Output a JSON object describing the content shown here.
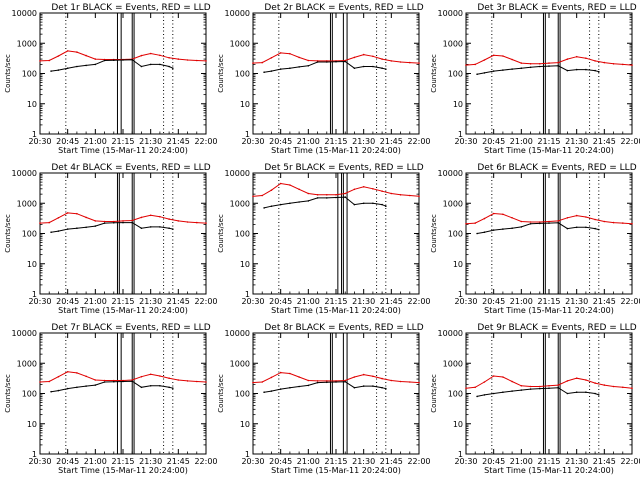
{
  "colors": {
    "events": "#000000",
    "lld": "#e00000",
    "axes": "#000000"
  },
  "common": {
    "ylabel": "Counts/sec",
    "xlabel": "Start Time (15-Mar-11 20:24:00)",
    "x_tick_labels": [
      "20:30",
      "20:45",
      "21:00",
      "21:15",
      "21:30",
      "21:45",
      "22:00"
    ],
    "y_tick_labels": [
      "1",
      "10",
      "100",
      "1000",
      "10000"
    ]
  },
  "chart_data": [
    {
      "type": "line",
      "y_scale": "log",
      "title": "Det 1r BLACK = Events, RED = LLD",
      "xlim": [
        "20:30",
        "22:00"
      ],
      "ylim": [
        1,
        10000
      ],
      "markers": [
        "20:44",
        "21:37",
        "21:42"
      ],
      "gaps": [
        [
          "21:12",
          "21:14"
        ],
        [
          "21:20",
          "21:21"
        ]
      ],
      "series": [
        {
          "name": "LLD",
          "x": [
            "20:30",
            "20:35",
            "20:40",
            "20:45",
            "20:50",
            "20:55",
            "21:00",
            "21:05",
            "21:10",
            "21:15",
            "21:20",
            "21:25",
            "21:30",
            "21:35",
            "21:40",
            "21:45",
            "21:50",
            "21:55",
            "22:00"
          ],
          "values": [
            260,
            270,
            380,
            560,
            510,
            390,
            300,
            290,
            290,
            290,
            300,
            390,
            460,
            400,
            330,
            300,
            280,
            270,
            260
          ]
        },
        {
          "name": "Events",
          "x": [
            "20:36",
            "20:40",
            "20:45",
            "20:50",
            "20:55",
            "21:00",
            "21:05",
            "21:10",
            "21:15",
            "21:20",
            "21:25",
            "21:30",
            "21:35",
            "21:40",
            "21:42"
          ],
          "values": [
            120,
            130,
            150,
            170,
            185,
            200,
            270,
            275,
            280,
            285,
            170,
            200,
            200,
            170,
            150
          ]
        }
      ]
    },
    {
      "type": "line",
      "y_scale": "log",
      "title": "Det 2r BLACK = Events, RED = LLD",
      "xlim": [
        "20:30",
        "22:00"
      ],
      "ylim": [
        1,
        10000
      ],
      "markers": [
        "20:44",
        "21:37",
        "21:42"
      ],
      "gaps": [
        [
          "21:12",
          "21:13"
        ],
        [
          "21:19",
          "21:21"
        ]
      ],
      "series": [
        {
          "name": "LLD",
          "x": [
            "20:30",
            "20:35",
            "20:40",
            "20:45",
            "20:50",
            "20:55",
            "21:00",
            "21:05",
            "21:10",
            "21:15",
            "21:20",
            "21:25",
            "21:30",
            "21:35",
            "21:40",
            "21:45",
            "21:50",
            "21:55",
            "22:00"
          ],
          "values": [
            220,
            230,
            330,
            480,
            450,
            340,
            270,
            260,
            260,
            260,
            270,
            340,
            420,
            370,
            300,
            260,
            240,
            230,
            220
          ]
        },
        {
          "name": "Events",
          "x": [
            "20:36",
            "20:40",
            "20:45",
            "20:50",
            "20:55",
            "21:00",
            "21:05",
            "21:10",
            "21:15",
            "21:20",
            "21:25",
            "21:30",
            "21:35",
            "21:40",
            "21:42"
          ],
          "values": [
            110,
            120,
            140,
            150,
            165,
            180,
            240,
            240,
            245,
            250,
            150,
            170,
            170,
            150,
            140
          ]
        }
      ]
    },
    {
      "type": "line",
      "y_scale": "log",
      "title": "Det 3r BLACK = Events, RED = LLD",
      "xlim": [
        "20:30",
        "22:00"
      ],
      "ylim": [
        1,
        10000
      ],
      "markers": [
        "20:44",
        "21:37",
        "21:42"
      ],
      "gaps": [
        [
          "21:12",
          "21:13"
        ],
        [
          "21:20",
          "21:21"
        ]
      ],
      "series": [
        {
          "name": "LLD",
          "x": [
            "20:30",
            "20:35",
            "20:40",
            "20:45",
            "20:50",
            "20:55",
            "21:00",
            "21:05",
            "21:10",
            "21:15",
            "21:20",
            "21:25",
            "21:30",
            "21:35",
            "21:40",
            "21:45",
            "21:50",
            "21:55",
            "22:00"
          ],
          "values": [
            190,
            200,
            280,
            400,
            380,
            290,
            220,
            210,
            210,
            220,
            230,
            300,
            360,
            320,
            260,
            230,
            210,
            200,
            190
          ]
        },
        {
          "name": "Events",
          "x": [
            "20:36",
            "20:40",
            "20:45",
            "20:50",
            "20:55",
            "21:00",
            "21:05",
            "21:10",
            "21:15",
            "21:20",
            "21:25",
            "21:30",
            "21:35",
            "21:40",
            "21:42"
          ],
          "values": [
            95,
            105,
            120,
            130,
            140,
            150,
            160,
            170,
            175,
            180,
            125,
            135,
            135,
            125,
            115
          ]
        }
      ]
    },
    {
      "type": "line",
      "y_scale": "log",
      "title": "Det 4r BLACK = Events, RED = LLD",
      "xlim": [
        "20:30",
        "22:00"
      ],
      "ylim": [
        1,
        10000
      ],
      "markers": [
        "20:44",
        "21:37",
        "21:42"
      ],
      "gaps": [
        [
          "21:12",
          "21:13"
        ],
        [
          "21:20",
          "21:21"
        ]
      ],
      "series": [
        {
          "name": "LLD",
          "x": [
            "20:30",
            "20:35",
            "20:40",
            "20:45",
            "20:50",
            "20:55",
            "21:00",
            "21:05",
            "21:10",
            "21:15",
            "21:20",
            "21:25",
            "21:30",
            "21:35",
            "21:40",
            "21:45",
            "21:50",
            "21:55",
            "22:00"
          ],
          "values": [
            220,
            230,
            330,
            480,
            450,
            340,
            260,
            250,
            250,
            260,
            270,
            340,
            400,
            360,
            300,
            260,
            240,
            230,
            220
          ]
        },
        {
          "name": "Events",
          "x": [
            "20:36",
            "20:40",
            "20:45",
            "20:50",
            "20:55",
            "21:00",
            "21:05",
            "21:10",
            "21:15",
            "21:20",
            "21:25",
            "21:30",
            "21:35",
            "21:40",
            "21:42"
          ],
          "values": [
            110,
            120,
            140,
            150,
            160,
            175,
            220,
            225,
            230,
            230,
            150,
            165,
            165,
            150,
            140
          ]
        }
      ]
    },
    {
      "type": "line",
      "y_scale": "log",
      "title": "Det 5r BLACK = Events, RED = LLD",
      "xlim": [
        "20:30",
        "22:00"
      ],
      "ylim": [
        1,
        10000
      ],
      "markers": [
        "20:44",
        "21:37",
        "21:42"
      ],
      "gaps": [
        [
          "21:16",
          "21:18"
        ],
        [
          "21:19",
          "21:21"
        ]
      ],
      "series": [
        {
          "name": "LLD",
          "x": [
            "20:30",
            "20:35",
            "20:40",
            "20:45",
            "20:50",
            "20:55",
            "21:00",
            "21:05",
            "21:10",
            "21:15",
            "21:20",
            "21:25",
            "21:30",
            "21:35",
            "21:40",
            "21:45",
            "21:50",
            "21:55",
            "22:00"
          ],
          "values": [
            1700,
            1800,
            2700,
            4500,
            4000,
            2900,
            2100,
            1900,
            1900,
            1900,
            2100,
            2900,
            3500,
            3000,
            2500,
            2100,
            1900,
            1800,
            1700
          ]
        },
        {
          "name": "Events",
          "x": [
            "20:36",
            "20:40",
            "20:45",
            "20:50",
            "20:55",
            "21:00",
            "21:05",
            "21:10",
            "21:15",
            "21:20",
            "21:25",
            "21:30",
            "21:35",
            "21:40",
            "21:42"
          ],
          "values": [
            700,
            800,
            900,
            1000,
            1100,
            1200,
            1500,
            1500,
            1550,
            1600,
            900,
            1000,
            1000,
            900,
            800
          ]
        }
      ]
    },
    {
      "type": "line",
      "y_scale": "log",
      "title": "Det 6r BLACK = Events, RED = LLD",
      "xlim": [
        "20:30",
        "22:00"
      ],
      "ylim": [
        1,
        10000
      ],
      "markers": [
        "20:44",
        "21:37",
        "21:42"
      ],
      "gaps": [
        [
          "21:12",
          "21:13"
        ],
        [
          "21:20",
          "21:21"
        ]
      ],
      "series": [
        {
          "name": "LLD",
          "x": [
            "20:30",
            "20:35",
            "20:40",
            "20:45",
            "20:50",
            "20:55",
            "21:00",
            "21:05",
            "21:10",
            "21:15",
            "21:20",
            "21:25",
            "21:30",
            "21:35",
            "21:40",
            "21:45",
            "21:50",
            "21:55",
            "22:00"
          ],
          "values": [
            210,
            220,
            310,
            460,
            430,
            330,
            250,
            240,
            240,
            250,
            260,
            330,
            390,
            350,
            290,
            250,
            230,
            220,
            210
          ]
        },
        {
          "name": "Events",
          "x": [
            "20:36",
            "20:40",
            "20:45",
            "20:50",
            "20:55",
            "21:00",
            "21:05",
            "21:10",
            "21:15",
            "21:20",
            "21:25",
            "21:30",
            "21:35",
            "21:40",
            "21:42"
          ],
          "values": [
            100,
            110,
            130,
            140,
            150,
            165,
            210,
            215,
            220,
            225,
            145,
            160,
            160,
            145,
            135
          ]
        }
      ]
    },
    {
      "type": "line",
      "y_scale": "log",
      "title": "Det 7r BLACK = Events, RED = LLD",
      "xlim": [
        "20:30",
        "22:00"
      ],
      "ylim": [
        1,
        10000
      ],
      "markers": [
        "20:44",
        "21:37",
        "21:42"
      ],
      "gaps": [
        [
          "21:12",
          "21:14"
        ],
        [
          "21:20",
          "21:21"
        ]
      ],
      "series": [
        {
          "name": "LLD",
          "x": [
            "20:30",
            "20:35",
            "20:40",
            "20:45",
            "20:50",
            "20:55",
            "21:00",
            "21:05",
            "21:10",
            "21:15",
            "21:20",
            "21:25",
            "21:30",
            "21:35",
            "21:40",
            "21:45",
            "21:50",
            "21:55",
            "22:00"
          ],
          "values": [
            240,
            250,
            360,
            520,
            480,
            370,
            280,
            270,
            270,
            270,
            280,
            360,
            430,
            380,
            320,
            280,
            260,
            250,
            240
          ]
        },
        {
          "name": "Events",
          "x": [
            "20:36",
            "20:40",
            "20:45",
            "20:50",
            "20:55",
            "21:00",
            "21:05",
            "21:10",
            "21:15",
            "21:20",
            "21:25",
            "21:30",
            "21:35",
            "21:40",
            "21:42"
          ],
          "values": [
            115,
            125,
            145,
            160,
            175,
            190,
            240,
            245,
            250,
            255,
            160,
            180,
            180,
            160,
            150
          ]
        }
      ]
    },
    {
      "type": "line",
      "y_scale": "log",
      "title": "Det 8r BLACK = Events, RED = LLD",
      "xlim": [
        "20:30",
        "22:00"
      ],
      "ylim": [
        1,
        10000
      ],
      "markers": [
        "20:44",
        "21:37",
        "21:42"
      ],
      "gaps": [
        [
          "21:12",
          "21:13"
        ],
        [
          "21:19",
          "21:21"
        ]
      ],
      "series": [
        {
          "name": "LLD",
          "x": [
            "20:30",
            "20:35",
            "20:40",
            "20:45",
            "20:50",
            "20:55",
            "21:00",
            "21:05",
            "21:10",
            "21:15",
            "21:20",
            "21:25",
            "21:30",
            "21:35",
            "21:40",
            "21:45",
            "21:50",
            "21:55",
            "22:00"
          ],
          "values": [
            230,
            240,
            340,
            490,
            460,
            350,
            270,
            260,
            260,
            260,
            270,
            350,
            420,
            370,
            310,
            270,
            250,
            240,
            230
          ]
        },
        {
          "name": "Events",
          "x": [
            "20:36",
            "20:40",
            "20:45",
            "20:50",
            "20:55",
            "21:00",
            "21:05",
            "21:10",
            "21:15",
            "21:20",
            "21:25",
            "21:30",
            "21:35",
            "21:40",
            "21:42"
          ],
          "values": [
            110,
            120,
            140,
            155,
            170,
            185,
            230,
            235,
            240,
            245,
            155,
            175,
            175,
            155,
            145
          ]
        }
      ]
    },
    {
      "type": "line",
      "y_scale": "log",
      "title": "Det 9r BLACK = Events, RED = LLD",
      "xlim": [
        "20:30",
        "22:00"
      ],
      "ylim": [
        1,
        10000
      ],
      "markers": [
        "20:44",
        "21:37",
        "21:42"
      ],
      "gaps": [
        [
          "21:12",
          "21:13"
        ],
        [
          "21:20",
          "21:21"
        ]
      ],
      "series": [
        {
          "name": "LLD",
          "x": [
            "20:30",
            "20:35",
            "20:40",
            "20:45",
            "20:50",
            "20:55",
            "21:00",
            "21:05",
            "21:10",
            "21:15",
            "21:20",
            "21:25",
            "21:30",
            "21:35",
            "21:40",
            "21:45",
            "21:50",
            "21:55",
            "22:00"
          ],
          "values": [
            150,
            160,
            240,
            380,
            350,
            250,
            180,
            170,
            170,
            180,
            190,
            260,
            320,
            280,
            220,
            190,
            170,
            160,
            150
          ]
        },
        {
          "name": "Events",
          "x": [
            "20:36",
            "20:40",
            "20:45",
            "20:50",
            "20:55",
            "21:00",
            "21:05",
            "21:10",
            "21:15",
            "21:20",
            "21:25",
            "21:30",
            "21:35",
            "21:40",
            "21:42"
          ],
          "values": [
            80,
            90,
            100,
            110,
            120,
            130,
            140,
            145,
            150,
            155,
            100,
            110,
            110,
            100,
            90
          ]
        }
      ]
    }
  ]
}
